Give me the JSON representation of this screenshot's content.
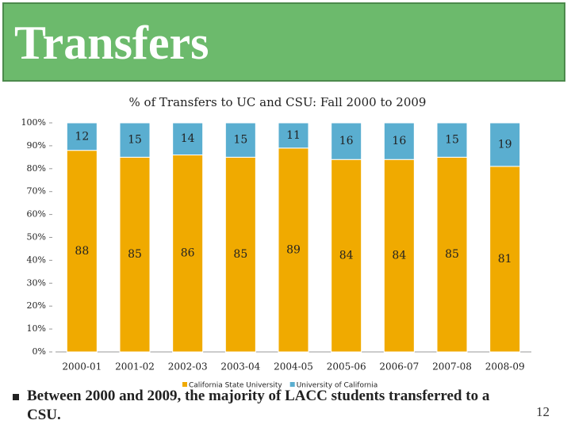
{
  "slide": {
    "title": "Transfers",
    "bullet": "Between 2000 and 2009, the majority of LACC students transferred to a CSU.",
    "page_number": "12"
  },
  "chart_data": {
    "type": "stacked_bar",
    "title": "% of Transfers to UC and CSU: Fall 2000 to 2009",
    "categories": [
      "2000-01",
      "2001-02",
      "2002-03",
      "2003-04",
      "2004-05",
      "2005-06",
      "2006-07",
      "2007-08",
      "2008-09"
    ],
    "series": [
      {
        "name": "California State University",
        "color": "#f0aa00",
        "values": [
          88,
          85,
          86,
          85,
          89,
          84,
          84,
          85,
          81
        ]
      },
      {
        "name": "University of California",
        "color": "#5aaed0",
        "values": [
          12,
          15,
          14,
          15,
          11,
          16,
          16,
          15,
          19
        ]
      }
    ],
    "ylim": [
      0,
      100
    ],
    "yticks": [
      {
        "value": 0,
        "label": "0%"
      },
      {
        "value": 10,
        "label": "10%"
      },
      {
        "value": 20,
        "label": "20%"
      },
      {
        "value": 30,
        "label": "30%"
      },
      {
        "value": 40,
        "label": "40%"
      },
      {
        "value": 50,
        "label": "50%"
      },
      {
        "value": 60,
        "label": "60%"
      },
      {
        "value": 70,
        "label": "70%"
      },
      {
        "value": 80,
        "label": "80%"
      },
      {
        "value": 90,
        "label": "90%"
      },
      {
        "value": 100,
        "label": "100%"
      }
    ],
    "legend": "bottom"
  }
}
